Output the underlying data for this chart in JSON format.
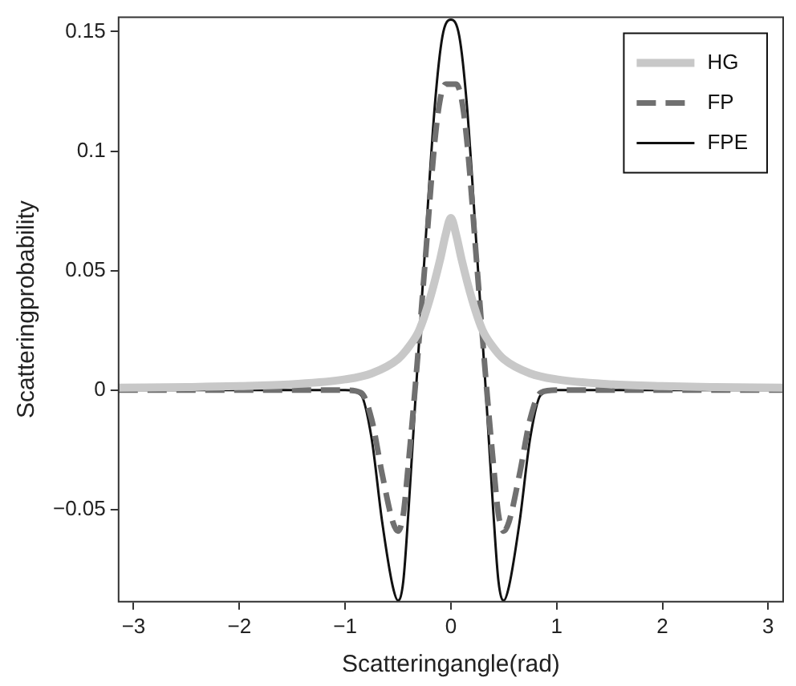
{
  "chart_data": {
    "type": "line",
    "xlabel": "Scatteringangle(rad)",
    "ylabel": "Scatteringprobability",
    "xlim": [
      -3.1416,
      3.1416
    ],
    "xticks": [
      -3,
      -2,
      -1,
      0,
      1,
      2,
      3
    ],
    "ylim": [
      -0.0885,
      0.156
    ],
    "yticks": [
      -0.05,
      0,
      0.05,
      0.1,
      0.15
    ],
    "grid": false,
    "legend": "top right",
    "marker": "none",
    "series": [
      {
        "name": "HG",
        "color": "#c8c8c8",
        "line_style": "solid",
        "x": [
          -3.1416,
          -2.5,
          -2,
          -1.5,
          -1,
          -0.75,
          -0.5,
          -0.4,
          -0.3,
          -0.2,
          -0.1,
          -0.05,
          0,
          0.05,
          0.1,
          0.2,
          0.3,
          0.4,
          0.5,
          0.75,
          1,
          1.5,
          2,
          2.5,
          3.1416
        ],
        "values": [
          0.001,
          0.0013,
          0.0017,
          0.0025,
          0.0045,
          0.007,
          0.013,
          0.018,
          0.025,
          0.038,
          0.055,
          0.065,
          0.072,
          0.065,
          0.055,
          0.038,
          0.025,
          0.018,
          0.013,
          0.007,
          0.0045,
          0.0025,
          0.0017,
          0.0013,
          0.001
        ]
      },
      {
        "name": "FP",
        "color": "#707070",
        "line_style": "dashed",
        "x": [
          -3.1416,
          -1,
          -0.85,
          -0.75,
          -0.65,
          -0.55,
          -0.5,
          -0.45,
          -0.4,
          -0.33,
          -0.25,
          -0.15,
          -0.1,
          -0.05,
          0,
          0.05,
          0.1,
          0.15,
          0.25,
          0.33,
          0.4,
          0.45,
          0.5,
          0.55,
          0.65,
          0.75,
          0.85,
          1,
          3.1416
        ],
        "values": [
          0,
          0,
          -0.001,
          -0.012,
          -0.035,
          -0.055,
          -0.059,
          -0.052,
          -0.03,
          0.005,
          0.05,
          0.105,
          0.122,
          0.128,
          0.128,
          0.128,
          0.122,
          0.105,
          0.05,
          0.005,
          -0.03,
          -0.052,
          -0.059,
          -0.055,
          -0.035,
          -0.012,
          -0.001,
          0,
          0
        ]
      },
      {
        "name": "FPE",
        "color": "#111111",
        "line_style": "solid",
        "x": [
          -3.1416,
          -1,
          -0.85,
          -0.75,
          -0.65,
          -0.55,
          -0.5,
          -0.45,
          -0.4,
          -0.33,
          -0.25,
          -0.15,
          -0.08,
          0,
          0.08,
          0.15,
          0.25,
          0.33,
          0.4,
          0.45,
          0.5,
          0.55,
          0.65,
          0.75,
          0.85,
          1,
          3.1416
        ],
        "values": [
          0,
          0,
          -0.002,
          -0.02,
          -0.055,
          -0.082,
          -0.088,
          -0.08,
          -0.05,
          0,
          0.055,
          0.12,
          0.148,
          0.155,
          0.148,
          0.12,
          0.055,
          0,
          -0.05,
          -0.08,
          -0.088,
          -0.082,
          -0.055,
          -0.02,
          -0.002,
          0,
          0
        ]
      }
    ]
  }
}
